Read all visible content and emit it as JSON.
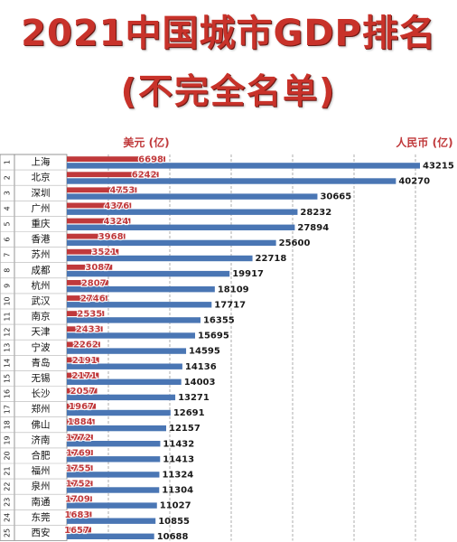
{
  "chart_data": {
    "type": "bar",
    "title": "2021中国城市GDP排名",
    "subtitle": "(不完全名单)",
    "legend": {
      "usd_label": "美元 (亿)",
      "rmb_label": "人民币 (亿)"
    },
    "colors": {
      "usd": "#c0393b",
      "rmb": "#4a76b4",
      "usd_text": "#c0393b",
      "rmb_text": "#1a1a1a",
      "title": "#c8322a"
    },
    "grid": true,
    "rows": [
      {
        "rank": "1",
        "city": "上海",
        "usd": 6698,
        "rmb": 43215
      },
      {
        "rank": "2",
        "city": "北京",
        "usd": 6242,
        "rmb": 40270
      },
      {
        "rank": "3",
        "city": "深圳",
        "usd": 4753,
        "rmb": 30665
      },
      {
        "rank": "4",
        "city": "广州",
        "usd": 4376,
        "rmb": 28232
      },
      {
        "rank": "5",
        "city": "重庆",
        "usd": 4324,
        "rmb": 27894
      },
      {
        "rank": "6",
        "city": "香港",
        "usd": 3968,
        "rmb": 25600
      },
      {
        "rank": "7",
        "city": "苏州",
        "usd": 3521,
        "rmb": 22718
      },
      {
        "rank": "8",
        "city": "成都",
        "usd": 3087,
        "rmb": 19917
      },
      {
        "rank": "9",
        "city": "杭州",
        "usd": 2807,
        "rmb": 18109
      },
      {
        "rank": "10",
        "city": "武汉",
        "usd": 2746,
        "rmb": 17717
      },
      {
        "rank": "11",
        "city": "南京",
        "usd": 2535,
        "rmb": 16355
      },
      {
        "rank": "12",
        "city": "天津",
        "usd": 2433,
        "rmb": 15695
      },
      {
        "rank": "13",
        "city": "宁波",
        "usd": 2262,
        "rmb": 14595
      },
      {
        "rank": "14",
        "city": "青岛",
        "usd": 2191,
        "rmb": 14136
      },
      {
        "rank": "15",
        "city": "无锡",
        "usd": 2171,
        "rmb": 14003
      },
      {
        "rank": "16",
        "city": "长沙",
        "usd": 2057,
        "rmb": 13271
      },
      {
        "rank": "17",
        "city": "郑州",
        "usd": 1967,
        "rmb": 12691
      },
      {
        "rank": "18",
        "city": "佛山",
        "usd": 1884,
        "rmb": 12157
      },
      {
        "rank": "19",
        "city": "济南",
        "usd": 1772,
        "rmb": 11432
      },
      {
        "rank": "20",
        "city": "合肥",
        "usd": 1769,
        "rmb": 11413
      },
      {
        "rank": "21",
        "city": "福州",
        "usd": 1755,
        "rmb": 11324
      },
      {
        "rank": "22",
        "city": "泉州",
        "usd": 1752,
        "rmb": 11304
      },
      {
        "rank": "23",
        "city": "南通",
        "usd": 1709,
        "rmb": 11027
      },
      {
        "rank": "24",
        "city": "东莞",
        "usd": 1683,
        "rmb": 10855
      },
      {
        "rank": "25",
        "city": "西安",
        "usd": 1657,
        "rmb": 10688
      }
    ]
  }
}
